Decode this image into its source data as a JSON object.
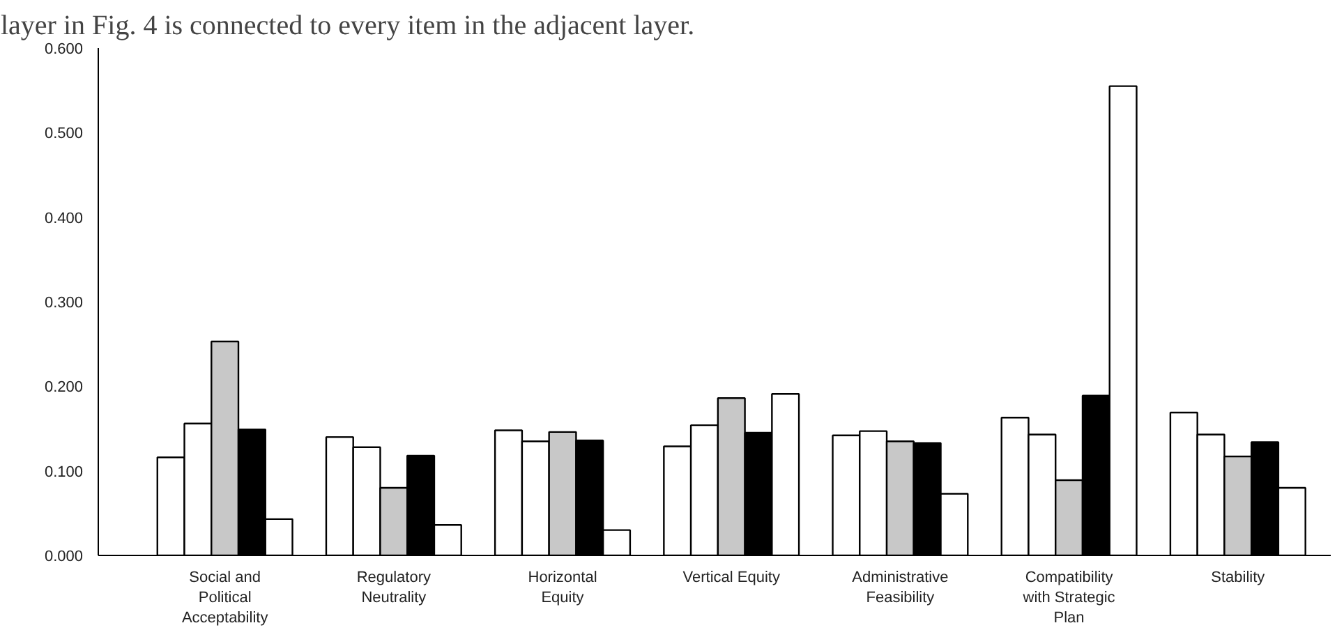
{
  "chart_data": {
    "type": "bar",
    "categories": [
      "Social and Political Acceptability",
      "Regulatory Neutrality",
      "Horizontal Equity",
      "Vertical Equity",
      "Administrative Feasibility",
      "Compatibility with Strategic Plan",
      "Stability"
    ],
    "series": [
      {
        "color": "#ffffff",
        "values": [
          0.116,
          0.14,
          0.148,
          0.129,
          0.142,
          0.163,
          0.169
        ]
      },
      {
        "color": "#ffffff",
        "values": [
          0.156,
          0.128,
          0.135,
          0.154,
          0.147,
          0.143,
          0.143
        ]
      },
      {
        "color": "#c8c8c8",
        "values": [
          0.253,
          0.08,
          0.146,
          0.186,
          0.135,
          0.089,
          0.117
        ]
      },
      {
        "color": "#000000",
        "values": [
          0.149,
          0.118,
          0.136,
          0.145,
          0.133,
          0.189,
          0.134
        ]
      },
      {
        "color": "#ffffff",
        "values": [
          0.043,
          0.036,
          0.03,
          0.191,
          0.073,
          0.555,
          0.08
        ]
      }
    ],
    "ylim": [
      0,
      0.6
    ],
    "yticks": [
      {
        "value": 0,
        "label": "0.000"
      },
      {
        "value": 0.1,
        "label": "0.100"
      },
      {
        "value": 0.2,
        "label": "0.200"
      },
      {
        "value": 0.3,
        "label": "0.300"
      },
      {
        "value": 0.4,
        "label": "0.400"
      },
      {
        "value": 0.5,
        "label": "0.500"
      },
      {
        "value": 0.6,
        "label": "0.600"
      }
    ],
    "annotations": [
      "layer in Fig. 4 is connected to every item in the adjacent layer."
    ],
    "grid": false
  }
}
